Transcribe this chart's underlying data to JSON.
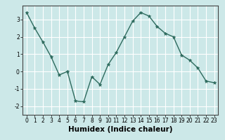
{
  "x": [
    0,
    1,
    2,
    3,
    4,
    5,
    6,
    7,
    8,
    9,
    10,
    11,
    12,
    13,
    14,
    15,
    16,
    17,
    18,
    19,
    20,
    21,
    22,
    23
  ],
  "y": [
    3.4,
    2.5,
    1.7,
    0.85,
    -0.2,
    0.0,
    -1.7,
    -1.75,
    -0.3,
    -0.75,
    0.4,
    1.1,
    2.0,
    2.9,
    3.4,
    3.2,
    2.6,
    2.2,
    2.0,
    0.95,
    0.65,
    0.2,
    -0.55,
    -0.65
  ],
  "xlabel": "Humidex (Indice chaleur)",
  "xlim": [
    -0.5,
    23.5
  ],
  "ylim": [
    -2.5,
    3.8
  ],
  "yticks": [
    -2,
    -1,
    0,
    1,
    2,
    3
  ],
  "xticks": [
    0,
    1,
    2,
    3,
    4,
    5,
    6,
    7,
    8,
    9,
    10,
    11,
    12,
    13,
    14,
    15,
    16,
    17,
    18,
    19,
    20,
    21,
    22,
    23
  ],
  "line_color": "#2e6b5e",
  "marker_color": "#2e6b5e",
  "bg_color": "#cce8e8",
  "grid_color": "#ffffff",
  "tick_label_fontsize": 5.5,
  "xlabel_fontsize": 7.5
}
